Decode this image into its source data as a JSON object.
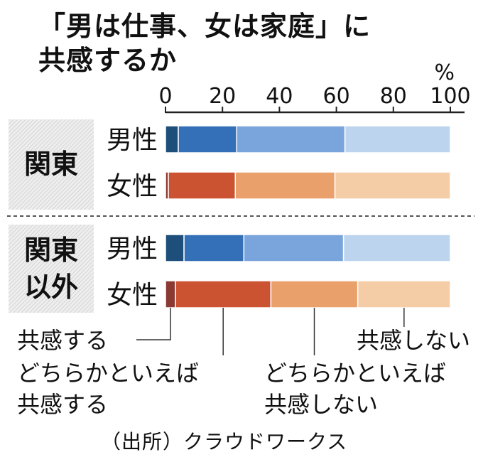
{
  "title": [
    "「男は仕事、女は家庭」に",
    "共感するか"
  ],
  "source": "（出所）クラウドワークス",
  "chart_data": {
    "type": "bar",
    "stacked": true,
    "orientation": "horizontal",
    "unit": "%",
    "xlim": [
      0,
      100
    ],
    "ticks": [
      0,
      20,
      40,
      60,
      80,
      100
    ],
    "groups": [
      {
        "name": "関東",
        "rows": [
          {
            "label": "男性",
            "values": [
              4.5,
              20.5,
              38,
              37
            ]
          },
          {
            "label": "女性",
            "values": [
              1,
              23.5,
              35,
              40.5
            ]
          }
        ]
      },
      {
        "name": "関東以外",
        "name_lines": [
          "関東",
          "以外"
        ],
        "rows": [
          {
            "label": "男性",
            "values": [
              6.5,
              21,
              35,
              37.5
            ]
          },
          {
            "label": "女性",
            "values": [
              3.5,
              33.5,
              30.5,
              32.5
            ]
          }
        ]
      }
    ],
    "legend": [
      "共感する",
      "どちらかといえば共感する",
      "どちらかといえば共感しない",
      "共感しない"
    ],
    "legend_lines": [
      [
        "共感する"
      ],
      [
        "どちらかといえば",
        "共感する"
      ],
      [
        "どちらかといえば",
        "共感しない"
      ],
      [
        "共感しない"
      ]
    ],
    "colors": {
      "男性": [
        "#1e4e7a",
        "#3470b8",
        "#79a5dc",
        "#bdd4ee"
      ],
      "女性": [
        "#8a3a33",
        "#cc5332",
        "#e9a06a",
        "#f4cda6"
      ]
    }
  }
}
